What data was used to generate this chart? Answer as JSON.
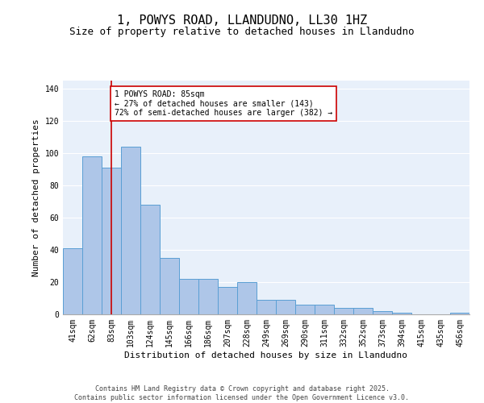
{
  "title": "1, POWYS ROAD, LLANDUDNO, LL30 1HZ",
  "subtitle": "Size of property relative to detached houses in Llandudno",
  "xlabel": "Distribution of detached houses by size in Llandudno",
  "ylabel": "Number of detached properties",
  "categories": [
    "41sqm",
    "62sqm",
    "83sqm",
    "103sqm",
    "124sqm",
    "145sqm",
    "166sqm",
    "186sqm",
    "207sqm",
    "228sqm",
    "249sqm",
    "269sqm",
    "290sqm",
    "311sqm",
    "332sqm",
    "352sqm",
    "373sqm",
    "394sqm",
    "415sqm",
    "435sqm",
    "456sqm"
  ],
  "values": [
    41,
    98,
    91,
    104,
    68,
    35,
    22,
    22,
    17,
    20,
    9,
    9,
    6,
    6,
    4,
    4,
    2,
    1,
    0,
    0,
    1
  ],
  "bar_color": "#aec6e8",
  "bar_edge_color": "#5a9fd4",
  "background_color": "#e8f0fa",
  "grid_color": "#ffffff",
  "vline_x_idx": 2,
  "vline_color": "#cc0000",
  "annotation_text": "1 POWYS ROAD: 85sqm\n← 27% of detached houses are smaller (143)\n72% of semi-detached houses are larger (382) →",
  "annotation_box_color": "#ffffff",
  "annotation_box_edge_color": "#cc0000",
  "footer_text": "Contains HM Land Registry data © Crown copyright and database right 2025.\nContains public sector information licensed under the Open Government Licence v3.0.",
  "ylim": [
    0,
    145
  ],
  "yticks": [
    0,
    20,
    40,
    60,
    80,
    100,
    120,
    140
  ],
  "title_fontsize": 11,
  "subtitle_fontsize": 9,
  "xlabel_fontsize": 8,
  "ylabel_fontsize": 8,
  "tick_fontsize": 7,
  "annotation_fontsize": 7,
  "footer_fontsize": 6
}
